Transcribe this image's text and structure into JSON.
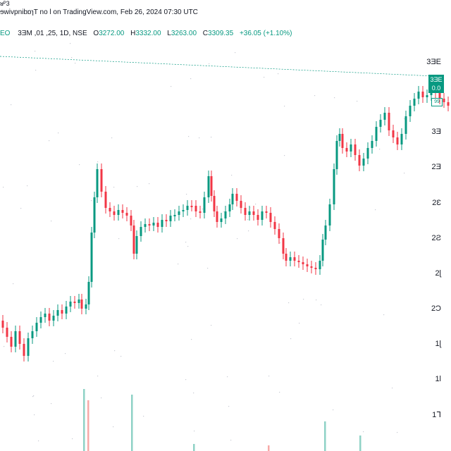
{
  "header": {
    "top_strip": "ᴚᴾ3",
    "line1": "ɘwivpnibɒɿT no l on TradingView.com, Feb 26, 2024 07:30 UTC",
    "ticker": "EO",
    "interval_text": "3ƎM ,01 ,25, 1D, NSE",
    "open_label": "O",
    "open_value": "3272.00",
    "high_label": "H",
    "high_value": "3332.00",
    "low_label": "L",
    "low_value": "3263.00",
    "close_label": "C",
    "close_value": "3309.35",
    "change": "+36.05 (+1.10%)"
  },
  "price_tag": {
    "line1": "3ƎE",
    "line2": "0.0",
    "countdown": "99"
  },
  "colors": {
    "up": "#089981",
    "down": "#f23645",
    "vol_up": "#8fd2c6",
    "vol_down": "#f7a9a7",
    "dotted": "#c8cbd3"
  },
  "chart_data": {
    "type": "candlestick",
    "title": "",
    "xlabel": "",
    "ylabel": "",
    "y_axis_ticks": [
      "3ƎE",
      "3Ǝ",
      "2Ǝ",
      "2Ɛ",
      "2Ƨ",
      "2ɭ",
      "2Ɔ",
      "1ɭ",
      "1Ɩ",
      "1ᒣ"
    ],
    "last_price": 3309.35,
    "series": [
      {
        "name": "",
        "close_path": [
          [
            0,
            455
          ],
          [
            6,
            465
          ],
          [
            12,
            478
          ],
          [
            18,
            492
          ],
          [
            24,
            470
          ],
          [
            30,
            488
          ],
          [
            36,
            505
          ],
          [
            42,
            480
          ],
          [
            48,
            470
          ],
          [
            54,
            458
          ],
          [
            60,
            450
          ],
          [
            66,
            445
          ],
          [
            72,
            455
          ],
          [
            78,
            448
          ],
          [
            84,
            440
          ],
          [
            90,
            445
          ],
          [
            96,
            435
          ],
          [
            102,
            428
          ],
          [
            108,
            430
          ],
          [
            114,
            425
          ],
          [
            118,
            438
          ],
          [
            124,
            432
          ],
          [
            128,
            400
          ],
          [
            132,
            330
          ],
          [
            136,
            280
          ],
          [
            140,
            240
          ],
          [
            146,
            272
          ],
          [
            152,
            295
          ],
          [
            158,
            300
          ],
          [
            164,
            305
          ],
          [
            170,
            298
          ],
          [
            176,
            302
          ],
          [
            182,
            306
          ],
          [
            188,
            320
          ],
          [
            192,
            360
          ],
          [
            196,
            335
          ],
          [
            202,
            322
          ],
          [
            208,
            318
          ],
          [
            214,
            320
          ],
          [
            220,
            316
          ],
          [
            226,
            322
          ],
          [
            232,
            312
          ],
          [
            238,
            314
          ],
          [
            244,
            306
          ],
          [
            250,
            305
          ],
          [
            256,
            300
          ],
          [
            262,
            298
          ],
          [
            268,
            292
          ],
          [
            274,
            292
          ],
          [
            280,
            300
          ],
          [
            286,
            302
          ],
          [
            292,
            280
          ],
          [
            298,
            250
          ],
          [
            302,
            278
          ],
          [
            306,
            300
          ],
          [
            310,
            315
          ],
          [
            316,
            310
          ],
          [
            322,
            300
          ],
          [
            328,
            290
          ],
          [
            332,
            275
          ],
          [
            338,
            285
          ],
          [
            344,
            295
          ],
          [
            350,
            305
          ],
          [
            356,
            300
          ],
          [
            362,
            305
          ],
          [
            368,
            312
          ],
          [
            374,
            300
          ],
          [
            380,
            302
          ],
          [
            386,
            315
          ],
          [
            392,
            325
          ],
          [
            398,
            338
          ],
          [
            404,
            360
          ],
          [
            408,
            370
          ],
          [
            414,
            365
          ],
          [
            420,
            370
          ],
          [
            426,
            372
          ],
          [
            432,
            375
          ],
          [
            438,
            378
          ],
          [
            444,
            380
          ],
          [
            450,
            382
          ],
          [
            456,
            370
          ],
          [
            460,
            340
          ],
          [
            464,
            320
          ],
          [
            470,
            290
          ],
          [
            476,
            240
          ],
          [
            480,
            200
          ],
          [
            484,
            190
          ],
          [
            488,
            210
          ],
          [
            494,
            215
          ],
          [
            500,
            205
          ],
          [
            506,
            220
          ],
          [
            512,
            235
          ],
          [
            518,
            225
          ],
          [
            524,
            210
          ],
          [
            530,
            200
          ],
          [
            536,
            180
          ],
          [
            542,
            170
          ],
          [
            548,
            160
          ],
          [
            554,
            185
          ],
          [
            560,
            195
          ],
          [
            566,
            205
          ],
          [
            572,
            190
          ],
          [
            578,
            165
          ],
          [
            584,
            150
          ],
          [
            590,
            140
          ],
          [
            596,
            130
          ],
          [
            602,
            138
          ],
          [
            608,
            135
          ],
          [
            614,
            130
          ],
          [
            620,
            132
          ],
          [
            626,
            140
          ],
          [
            632,
            145
          ],
          [
            638,
            150
          ]
        ]
      }
    ],
    "volumes": [
      {
        "x": 118,
        "h": 88,
        "up": true
      },
      {
        "x": 124,
        "h": 72,
        "up": false
      },
      {
        "x": 186,
        "h": 80,
        "up": true
      },
      {
        "x": 460,
        "h": 42,
        "up": true
      },
      {
        "x": 274,
        "h": 10,
        "up": true
      },
      {
        "x": 380,
        "h": 8,
        "up": false
      },
      {
        "x": 510,
        "h": 22,
        "up": true
      }
    ]
  }
}
